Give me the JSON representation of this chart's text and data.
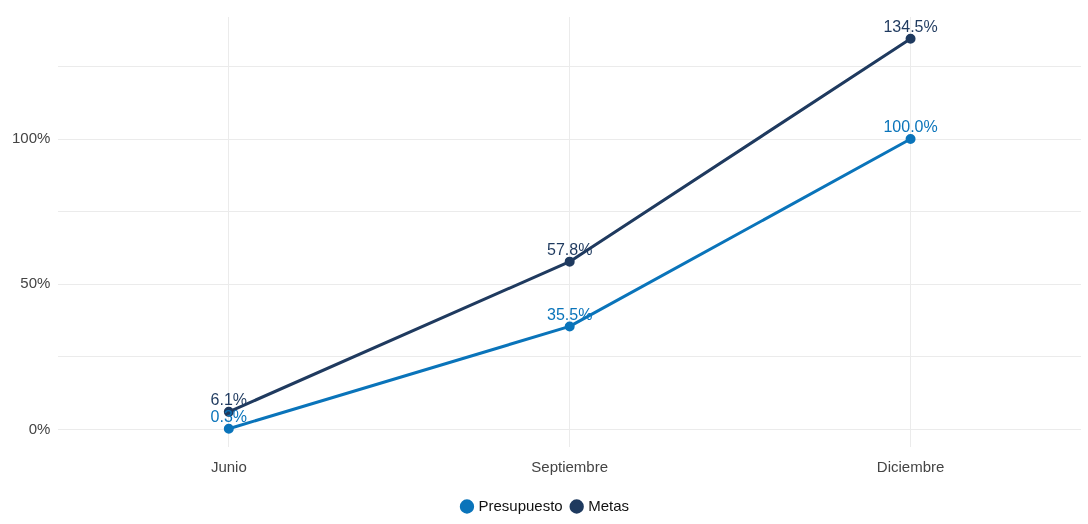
{
  "chart_data": {
    "type": "line",
    "categories": [
      "Junio",
      "Septiembre",
      "Diciembre"
    ],
    "series": [
      {
        "name": "Presupuesto",
        "color": "#0a74ba",
        "values": [
          0.3,
          35.5,
          100.0
        ],
        "value_labels": [
          "0.3%",
          "35.5%",
          "100.0%"
        ]
      },
      {
        "name": "Metas",
        "color": "#1f3a5f",
        "values": [
          6.1,
          57.8,
          134.5
        ],
        "value_labels": [
          "6.1%",
          "57.8%",
          "134.5%"
        ]
      }
    ],
    "ylim": [
      -6,
      142
    ],
    "yticks": [
      {
        "value": 0,
        "label": "0%"
      },
      {
        "value": 25,
        "label": null
      },
      {
        "value": 50,
        "label": "50%"
      },
      {
        "value": 75,
        "label": null
      },
      {
        "value": 100,
        "label": "100%"
      },
      {
        "value": 125,
        "label": null
      }
    ],
    "grid": true,
    "legend": "bottom",
    "marker": "circle",
    "line_style": "solid"
  }
}
